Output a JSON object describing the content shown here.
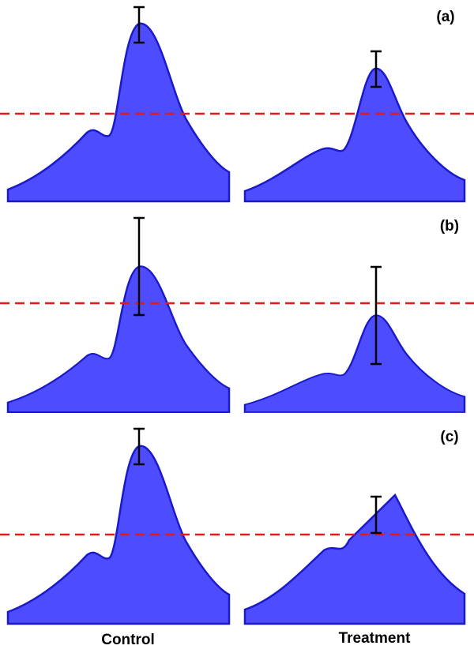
{
  "panels": [
    {
      "label": "(a)"
    },
    {
      "label": "(b)"
    },
    {
      "label": "(c)"
    }
  ],
  "columns": [
    "Control",
    "Treatment"
  ]
}
